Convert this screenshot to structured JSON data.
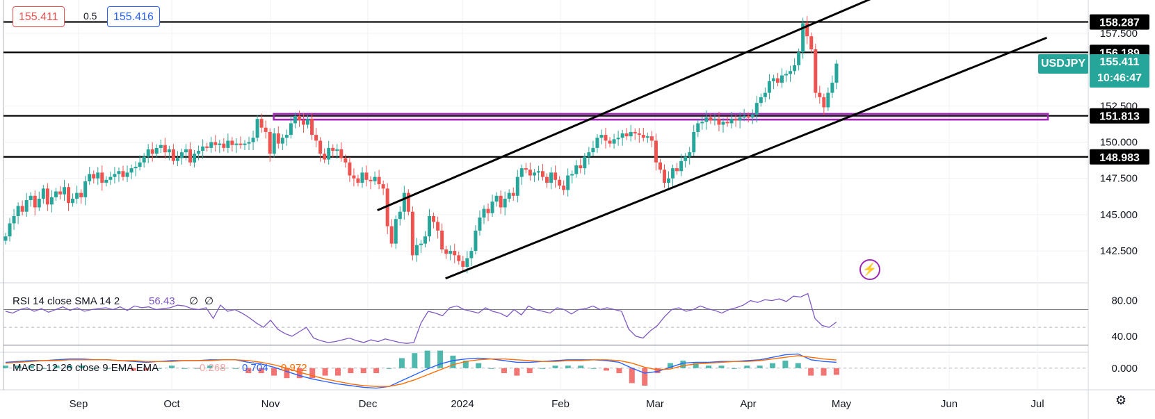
{
  "quote": {
    "bid": "155.411",
    "spread": "0.5",
    "ask": "155.416"
  },
  "symbol": {
    "name": "USDJPY",
    "price": "155.411",
    "countdown": "10:46:47"
  },
  "colors": {
    "up": "#26a69a",
    "down": "#ef5350",
    "zone": "#9c27b0",
    "rsi": "#7e57c2",
    "macd": "#2962ff",
    "signal": "#ff6d00"
  },
  "icons": {
    "alert": "lightning-bolt-icon",
    "settings": "gear-icon"
  },
  "chart_data": [
    {
      "type": "candlestick",
      "title": "",
      "xlabel": "",
      "ylabel": "",
      "x_ticks": [
        "Sep",
        "Oct",
        "Nov",
        "Dec",
        "2024",
        "Feb",
        "Mar",
        "Apr",
        "May",
        "Jun",
        "Jul"
      ],
      "y_ticks": [
        "142.500",
        "145.000",
        "147.500",
        "150.000",
        "152.500",
        "157.500"
      ],
      "ylim": [
        140.3,
        159.8
      ],
      "grid": true,
      "horizontal_levels": [
        "158.287",
        "156.189",
        "151.813",
        "148.983"
      ],
      "resistance_zone": [
        151.55,
        151.95
      ],
      "channel": {
        "upper": [
          [
            "2023-12-05",
            145.3
          ],
          [
            "2024-05-21",
            160.0
          ]
        ],
        "lower": [
          [
            "2023-12-28",
            140.6
          ],
          [
            "2024-07-18",
            157.2
          ]
        ]
      },
      "closes": [
        143.5,
        144.4,
        144.9,
        145.6,
        145.2,
        146.0,
        146.3,
        145.5,
        146.1,
        146.8,
        145.7,
        146.2,
        146.6,
        146.4,
        146.9,
        145.8,
        146.1,
        146.5,
        146.2,
        147.3,
        147.8,
        147.5,
        147.9,
        147.2,
        147.4,
        147.6,
        147.8,
        148.0,
        147.6,
        147.9,
        148.2,
        148.3,
        148.6,
        149.0,
        149.5,
        149.2,
        149.6,
        149.8,
        149.3,
        149.5,
        148.7,
        148.9,
        149.3,
        149.5,
        148.6,
        149.2,
        149.4,
        149.7,
        149.6,
        150.0,
        149.8,
        149.9,
        149.6,
        150.1,
        149.8,
        149.9,
        149.8,
        149.9,
        150.0,
        150.3,
        151.6,
        151.0,
        150.7,
        149.2,
        150.6,
        149.9,
        150.3,
        150.5,
        151.3,
        151.8,
        151.5,
        151.2,
        151.6,
        150.5,
        150.1,
        149.2,
        148.8,
        149.6,
        149.4,
        149.5,
        148.9,
        148.6,
        147.7,
        147.5,
        147.2,
        147.9,
        147.4,
        147.3,
        147.6,
        147.1,
        146.8,
        144.2,
        143.0,
        144.7,
        145.2,
        146.5,
        145.2,
        142.2,
        142.9,
        143.0,
        143.5,
        144.9,
        144.5,
        143.9,
        142.6,
        142.3,
        142.5,
        142.2,
        141.8,
        141.4,
        142.0,
        142.5,
        143.9,
        144.8,
        145.4,
        145.1,
        145.9,
        146.3,
        145.5,
        146.1,
        146.5,
        146.3,
        147.6,
        148.2,
        148.1,
        147.7,
        147.9,
        148.0,
        147.6,
        147.2,
        147.9,
        147.4,
        147.0,
        146.7,
        147.7,
        147.8,
        148.4,
        148.2,
        149.0,
        149.3,
        149.6,
        150.3,
        150.5,
        150.1,
        149.9,
        150.2,
        150.3,
        150.6,
        150.4,
        150.7,
        150.6,
        150.5,
        150.3,
        150.4,
        150.1,
        148.6,
        148.1,
        147.2,
        147.5,
        148.2,
        148.0,
        148.7,
        149.0,
        149.3,
        150.7,
        151.3,
        151.4,
        151.7,
        151.5,
        151.6,
        151.2,
        151.4,
        151.3,
        151.6,
        151.5,
        151.7,
        151.8,
        151.7,
        151.9,
        152.7,
        153.1,
        153.4,
        154.2,
        154.4,
        154.1,
        154.6,
        154.7,
        154.9,
        155.3,
        156.2,
        158.2,
        157.3,
        156.4,
        153.4,
        153.1,
        152.4,
        153.4,
        154.1,
        155.411
      ],
      "series": []
    },
    {
      "type": "line",
      "title": "",
      "legend": {
        "label": "RSI 14 close SMA 14 2",
        "value": "56.43",
        "extra1": "∅",
        "extra2": "∅"
      },
      "y_ticks": [
        "80.00",
        "40.00"
      ],
      "ylim": [
        22,
        100
      ],
      "guide_lines": [
        70,
        50,
        30
      ],
      "series": [
        {
          "name": "RSI",
          "values": [
            68,
            66,
            70,
            72,
            68,
            71,
            67,
            70,
            73,
            69,
            72,
            68,
            70,
            71,
            72,
            70,
            73,
            69,
            74,
            72,
            73,
            70,
            71,
            72,
            75,
            74,
            71,
            70,
            72,
            60,
            75,
            68,
            70,
            66,
            61,
            55,
            50,
            58,
            48,
            43,
            40,
            45,
            50,
            38,
            35,
            33,
            34,
            36,
            38,
            35,
            33,
            36,
            34,
            37,
            35,
            33,
            32,
            33,
            55,
            68,
            66,
            63,
            72,
            74,
            70,
            68,
            66,
            72,
            68,
            66,
            62,
            70,
            64,
            74,
            70,
            68,
            66,
            72,
            70,
            65,
            70,
            71,
            74,
            70,
            72,
            70,
            68,
            48,
            40,
            38,
            46,
            52,
            62,
            70,
            72,
            68,
            70,
            74,
            71,
            69,
            66,
            70,
            72,
            75,
            80,
            78,
            81,
            80,
            82,
            79,
            85,
            84,
            88,
            60,
            52,
            50,
            56
          ]
        }
      ]
    },
    {
      "type": "line",
      "title": "",
      "legend": {
        "label": "MACD 12 26 close 9 EMA EMA",
        "histogram": "-0.268",
        "macd": "0.704",
        "signal": "0.972"
      },
      "y_ticks": [
        "0.000"
      ],
      "ylim": [
        -2.6,
        1.9
      ],
      "series": [
        {
          "name": "MACD",
          "values": [
            0.7,
            0.8,
            0.9,
            0.9,
            1.0,
            1.1,
            1.1,
            1.0,
            1.0,
            0.9,
            0.8,
            0.7,
            0.8,
            0.9,
            0.9,
            0.9,
            1.0,
            1.0,
            1.0,
            0.7,
            0.5,
            0.1,
            -0.4,
            -0.9,
            -1.3,
            -1.6,
            -1.9,
            -2.1,
            -2.3,
            -2.4,
            -2.2,
            -1.5,
            -0.8,
            -0.1,
            0.5,
            0.9,
            1.1,
            1.2,
            1.1,
            0.9,
            0.7,
            0.7,
            0.8,
            0.9,
            1.0,
            1.0,
            1.0,
            0.9,
            0.7,
            0.0,
            -0.6,
            -0.4,
            0.1,
            0.6,
            0.7,
            0.7,
            0.8,
            0.8,
            0.9,
            1.0,
            1.3,
            1.6,
            1.7,
            1.0,
            0.8,
            0.704
          ]
        },
        {
          "name": "Signal",
          "values": [
            0.6,
            0.7,
            0.8,
            0.9,
            0.9,
            1.0,
            1.0,
            1.0,
            1.0,
            0.9,
            0.9,
            0.8,
            0.8,
            0.8,
            0.9,
            0.9,
            0.9,
            1.0,
            1.0,
            0.9,
            0.7,
            0.4,
            0.0,
            -0.5,
            -0.9,
            -1.3,
            -1.6,
            -1.9,
            -2.1,
            -2.2,
            -2.2,
            -1.9,
            -1.4,
            -0.8,
            -0.2,
            0.4,
            0.8,
            1.0,
            1.1,
            1.1,
            1.0,
            0.9,
            0.8,
            0.8,
            0.9,
            0.9,
            1.0,
            1.0,
            0.9,
            0.6,
            0.1,
            -0.2,
            -0.1,
            0.3,
            0.5,
            0.6,
            0.7,
            0.8,
            0.8,
            0.9,
            1.1,
            1.3,
            1.5,
            1.3,
            1.1,
            0.972
          ]
        }
      ]
    }
  ]
}
